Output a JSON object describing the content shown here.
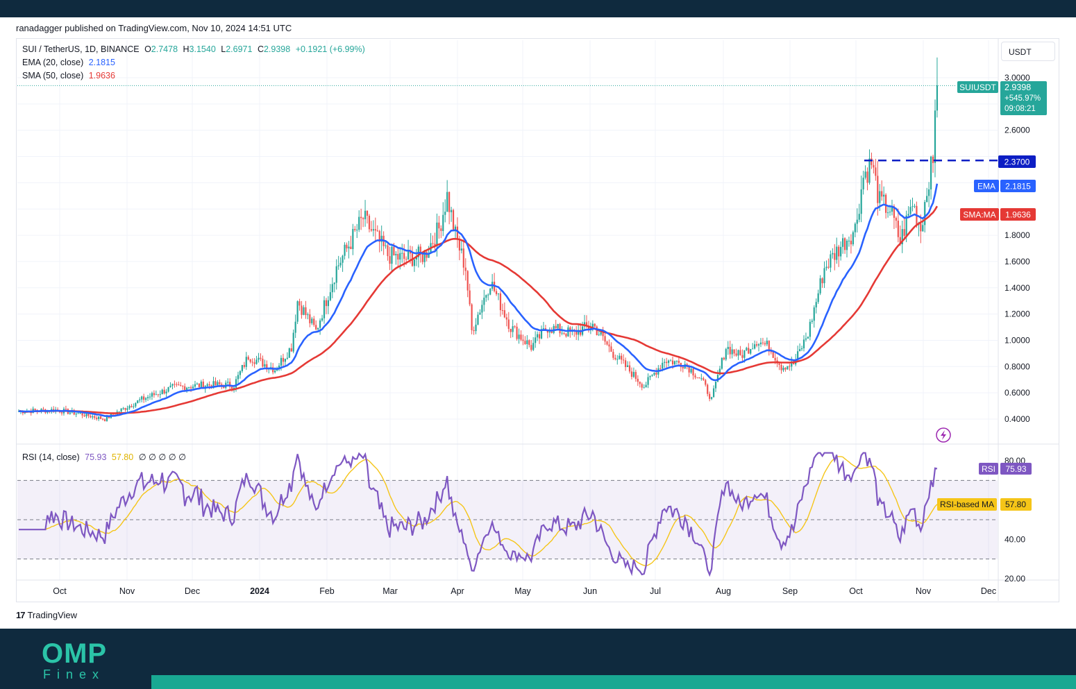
{
  "header": {
    "published": "ranadagger published on TradingView.com, Nov 10, 2024 14:51 UTC"
  },
  "legend": {
    "symbol": "SUI / TetherUS, 1D, BINANCE",
    "o_label": "O",
    "o_value": "2.7478",
    "h_label": "H",
    "h_value": "3.1540",
    "l_label": "L",
    "l_value": "2.6971",
    "c_label": "C",
    "c_value": "2.9398",
    "change": "+0.1921 (+6.99%)",
    "ema_label": "EMA (20, close)",
    "ema_value": "2.1815",
    "sma_label": "SMA (50, close)",
    "sma_value": "1.9636",
    "rsi_label": "RSI (14, close)",
    "rsi_value": "75.93",
    "rsi_ma_value": "57.80",
    "rsi_extra": "∅ ∅ ∅ ∅ ∅"
  },
  "unit": "USDT",
  "tradingview_logo": "TradingView",
  "brand": {
    "omp": "OMP",
    "finex": "Finex"
  },
  "colors": {
    "up": "#26a69a",
    "down": "#ef5350",
    "ema": "#2962ff",
    "sma": "#e53935",
    "rsi": "#7e57c2",
    "rsi_ma": "#f5c518",
    "level": "#0d1ec4",
    "background_dark": "#0f2a3e"
  },
  "chart_data": {
    "type": "candlestick",
    "title": "SUI / TetherUS, 1D, BINANCE",
    "y_axis_labels": [
      "3.0000",
      "2.6000",
      "1.8000",
      "1.6000",
      "1.4000",
      "1.2000",
      "1.0000",
      "0.8000",
      "0.6000",
      "0.4000"
    ],
    "x_axis_labels": [
      "Oct",
      "Nov",
      "Dec",
      "2024",
      "Feb",
      "Mar",
      "Apr",
      "May",
      "Jun",
      "Jul",
      "Aug",
      "Sep",
      "Oct",
      "Nov",
      "Dec"
    ],
    "price_tags": {
      "symbol": "SUIUSDT",
      "price": "2.9398",
      "change_pct": "+545.97%",
      "countdown": "09:08:21",
      "level": "2.3700",
      "ema_label": "EMA",
      "ema": "2.1815",
      "sma_label": "SMA:MA",
      "sma": "1.9636"
    },
    "horizontal_level": 2.37,
    "keypoints": [
      {
        "t": 0,
        "c": 0.46
      },
      {
        "t": 18,
        "c": 0.47
      },
      {
        "t": 30,
        "c": 0.44
      },
      {
        "t": 42,
        "c": 0.4
      },
      {
        "t": 50,
        "c": 0.47
      },
      {
        "t": 60,
        "c": 0.55
      },
      {
        "t": 75,
        "c": 0.64
      },
      {
        "t": 90,
        "c": 0.66
      },
      {
        "t": 105,
        "c": 0.66
      },
      {
        "t": 112,
        "c": 0.88
      },
      {
        "t": 125,
        "c": 0.78
      },
      {
        "t": 133,
        "c": 0.95
      },
      {
        "t": 136,
        "c": 1.3
      },
      {
        "t": 145,
        "c": 1.07
      },
      {
        "t": 155,
        "c": 1.55
      },
      {
        "t": 168,
        "c": 1.93
      },
      {
        "t": 180,
        "c": 1.65
      },
      {
        "t": 188,
        "c": 1.62
      },
      {
        "t": 198,
        "c": 1.65
      },
      {
        "t": 205,
        "c": 1.85
      },
      {
        "t": 209,
        "c": 2.1
      },
      {
        "t": 213,
        "c": 1.8
      },
      {
        "t": 218,
        "c": 1.55
      },
      {
        "t": 221,
        "c": 1.07
      },
      {
        "t": 230,
        "c": 1.45
      },
      {
        "t": 240,
        "c": 1.1
      },
      {
        "t": 250,
        "c": 0.95
      },
      {
        "t": 258,
        "c": 1.1
      },
      {
        "t": 270,
        "c": 1.05
      },
      {
        "t": 280,
        "c": 1.12
      },
      {
        "t": 290,
        "c": 0.9
      },
      {
        "t": 305,
        "c": 0.65
      },
      {
        "t": 315,
        "c": 0.85
      },
      {
        "t": 325,
        "c": 0.82
      },
      {
        "t": 333,
        "c": 0.7
      },
      {
        "t": 338,
        "c": 0.55
      },
      {
        "t": 345,
        "c": 0.95
      },
      {
        "t": 352,
        "c": 0.88
      },
      {
        "t": 360,
        "c": 1.0
      },
      {
        "t": 366,
        "c": 0.95
      },
      {
        "t": 372,
        "c": 0.8
      },
      {
        "t": 378,
        "c": 0.82
      },
      {
        "t": 385,
        "c": 1.05
      },
      {
        "t": 393,
        "c": 1.55
      },
      {
        "t": 400,
        "c": 1.7
      },
      {
        "t": 408,
        "c": 1.85
      },
      {
        "t": 412,
        "c": 2.25
      },
      {
        "t": 416,
        "c": 2.35
      },
      {
        "t": 420,
        "c": 2.05
      },
      {
        "t": 425,
        "c": 2.0
      },
      {
        "t": 430,
        "c": 1.75
      },
      {
        "t": 436,
        "c": 2.05
      },
      {
        "t": 440,
        "c": 1.85
      },
      {
        "t": 444,
        "c": 2.25
      },
      {
        "t": 446,
        "c": 2.35
      },
      {
        "t": 447,
        "c": 2.75
      },
      {
        "t": 448,
        "c": 2.94
      }
    ],
    "rsi_y_axis_labels": [
      "80.00",
      "40.00",
      "20.00"
    ],
    "rsi_bands": {
      "upper": 70,
      "middle": 50,
      "lower": 30
    },
    "rsi_tags": {
      "rsi_label": "RSI",
      "rsi": "75.93",
      "ma_label": "RSI-based MA",
      "ma": "57.80"
    }
  }
}
